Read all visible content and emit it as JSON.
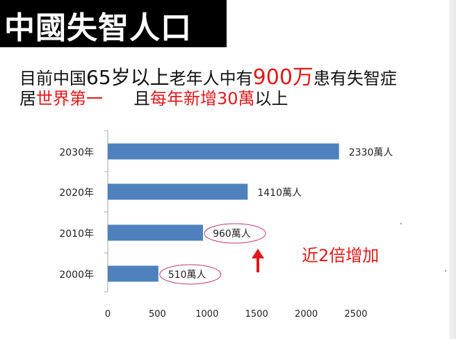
{
  "header": {
    "title": "中國失智人口",
    "line1": {
      "a": "目前中国",
      "b": "65岁",
      "c": "以上",
      "d": "老年人中有",
      "e": "900万",
      "f": "患有失智症"
    },
    "line2": {
      "a": "居",
      "b": "世界第一",
      "c": "且",
      "d": "每年新增30萬",
      "e": "以上"
    }
  },
  "annotation": {
    "text": "近2倍增加",
    "color": "#e0191b"
  },
  "colors": {
    "bar": "#4f81bd",
    "accent": "#e0191b",
    "ellipse": "#c0367a"
  },
  "chart_data": {
    "type": "bar",
    "orientation": "horizontal",
    "categories": [
      "2030年",
      "2020年",
      "2010年",
      "2000年"
    ],
    "values": [
      2330,
      1410,
      960,
      510
    ],
    "data_labels": [
      "2330萬人",
      "1410萬人",
      "960萬人",
      "510萬人"
    ],
    "circled_labels": [
      "2010年",
      "2000年"
    ],
    "xlim": [
      0,
      2500
    ],
    "xticks": [
      0,
      500,
      1000,
      1500,
      2000,
      2500
    ],
    "title": "",
    "xlabel": "",
    "ylabel": "",
    "grid": false,
    "legend": false
  }
}
